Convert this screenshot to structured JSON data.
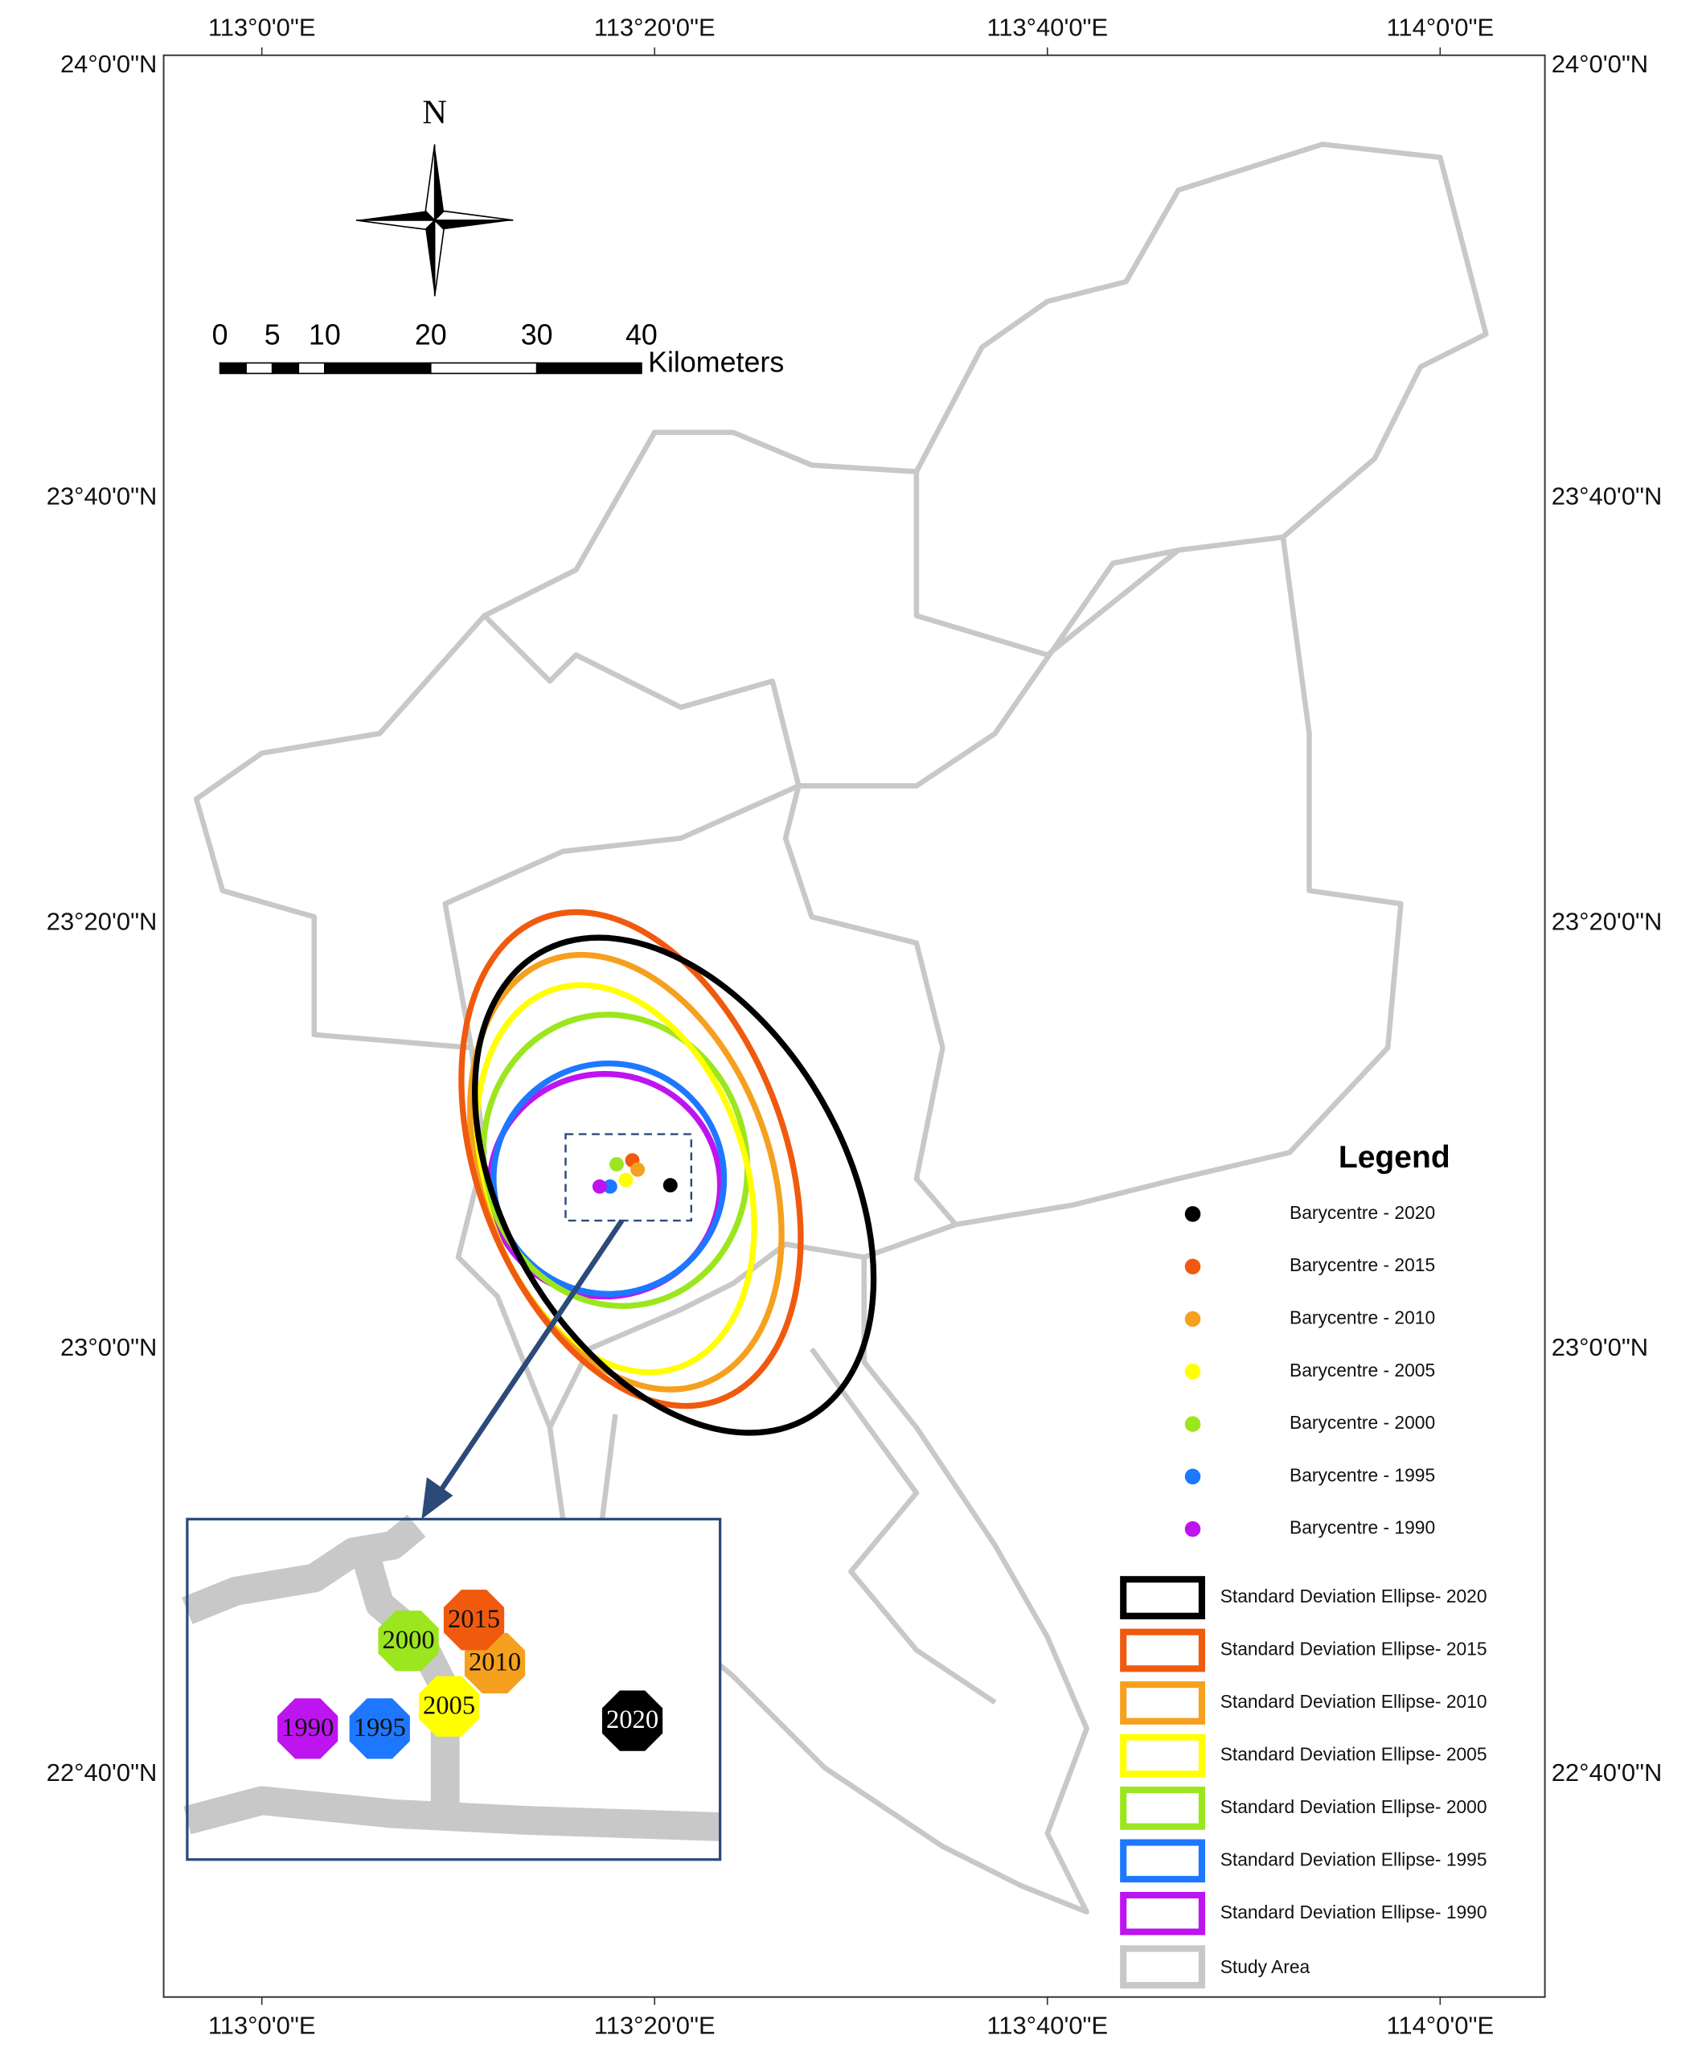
{
  "map": {
    "longitude_labels": [
      "113°0'0\"E",
      "113°20'0\"E",
      "113°40'0\"E",
      "114°0'0\"E"
    ],
    "latitude_labels": [
      "24°0'0\"N",
      "23°40'0\"N",
      "23°20'0\"N",
      "23°0'0\"N",
      "22°40'0\"N"
    ],
    "north_arrow": "N",
    "scale_bar": {
      "labels": [
        "0",
        "5",
        "10",
        "20",
        "30",
        "40"
      ],
      "unit": "Kilometers"
    },
    "legend": {
      "title": "Legend",
      "points": [
        {
          "label": "Barycentre - 2020",
          "color": "#000000"
        },
        {
          "label": "Barycentre - 2015",
          "color": "#f05a0f"
        },
        {
          "label": "Barycentre - 2010",
          "color": "#f5a01e"
        },
        {
          "label": "Barycentre - 2005",
          "color": "#ffff00"
        },
        {
          "label": "Barycentre - 2000",
          "color": "#9be61e"
        },
        {
          "label": "Barycentre - 1995",
          "color": "#1e78ff"
        },
        {
          "label": "Barycentre - 1990",
          "color": "#be14f0"
        }
      ],
      "ellipses": [
        {
          "label": "Standard Deviation Ellipse- 2020",
          "color": "#000000"
        },
        {
          "label": "Standard Deviation Ellipse- 2015",
          "color": "#f05a0f"
        },
        {
          "label": "Standard Deviation Ellipse- 2010",
          "color": "#f5a01e"
        },
        {
          "label": "Standard Deviation Ellipse- 2005",
          "color": "#ffff00"
        },
        {
          "label": "Standard Deviation Ellipse- 2000",
          "color": "#9be61e"
        },
        {
          "label": "Standard Deviation Ellipse- 1995",
          "color": "#1e78ff"
        },
        {
          "label": "Standard Deviation Ellipse- 1990",
          "color": "#be14f0"
        }
      ],
      "study_area": {
        "label": "Study Area",
        "color": "#c8c8c8"
      }
    },
    "inset": {
      "labels": [
        "2020",
        "2015",
        "2010",
        "2005",
        "2000",
        "1995",
        "1990"
      ]
    }
  }
}
